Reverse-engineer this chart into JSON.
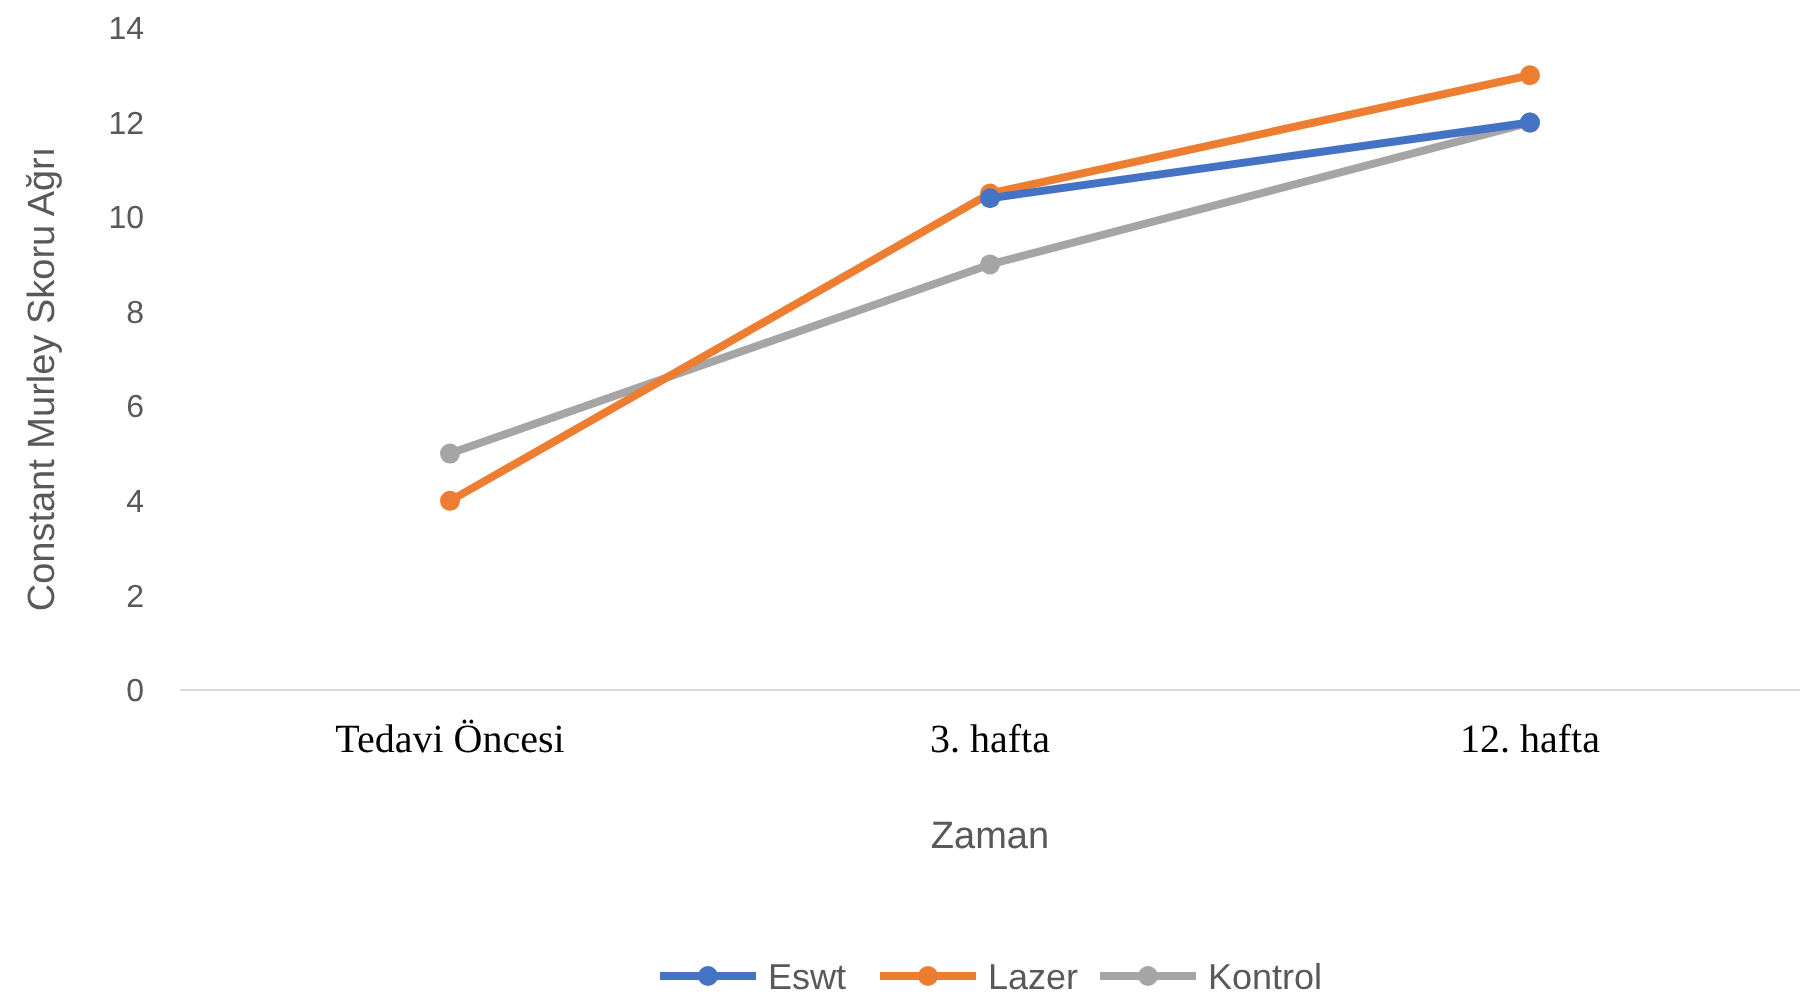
{
  "chart_data": {
    "type": "line",
    "xlabel": "Zaman",
    "ylabel": "Constant Murley Skoru Ağrı",
    "categories": [
      "Tedavi Öncesi",
      "3. hafta",
      "12. hafta"
    ],
    "series": [
      {
        "name": "Eswt",
        "color": "#4472c4",
        "values": [
          null,
          10.4,
          12
        ]
      },
      {
        "name": "Lazer",
        "color": "#ed7d31",
        "values": [
          4,
          10.5,
          13
        ]
      },
      {
        "name": "Kontrol",
        "color": "#a5a5a5",
        "values": [
          5,
          9,
          12
        ]
      }
    ],
    "ylim": [
      0,
      14
    ],
    "yticks": [
      0,
      2,
      4,
      6,
      8,
      10,
      12,
      14
    ],
    "marker": "circle",
    "legend": "bottom"
  }
}
